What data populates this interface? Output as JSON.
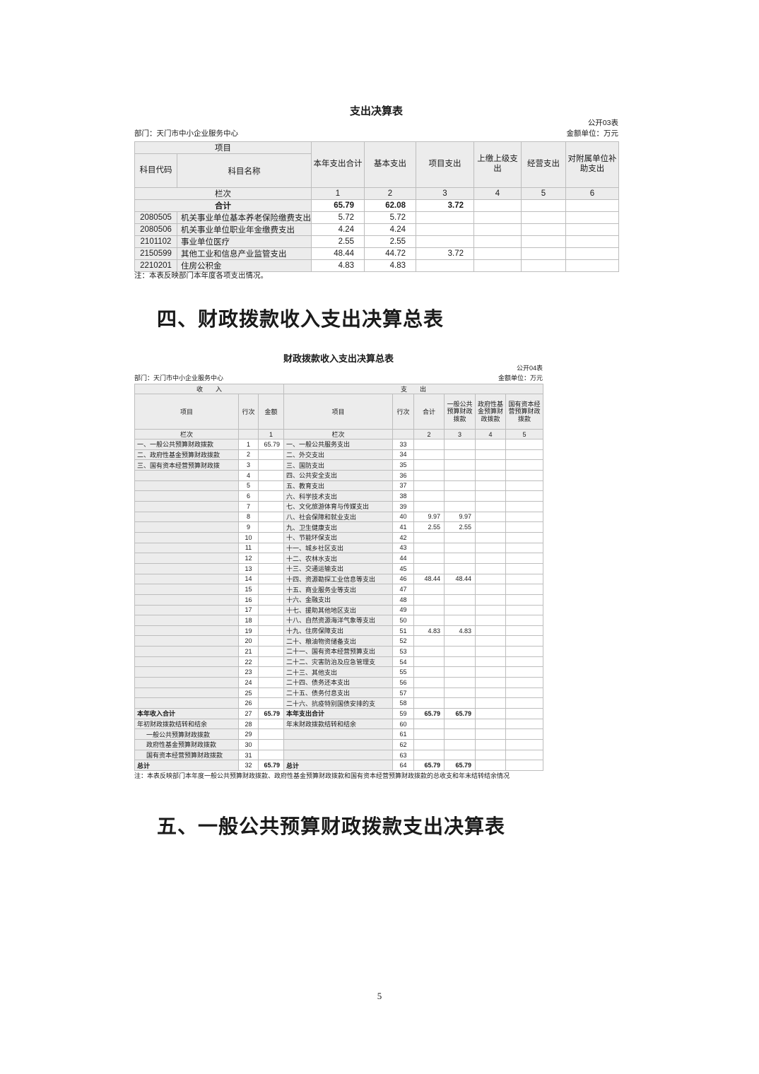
{
  "colors": {
    "header_bg": "#ececec",
    "border": "#bdbdbd",
    "page_bg": "#ffffff",
    "text": "#1a1a1a"
  },
  "page_number": "5",
  "section4_heading": "四、财政拨款收入支出决算总表",
  "section5_heading": "五、一般公共预算财政拨款支出决算表",
  "table1": {
    "title": "支出决算表",
    "form_no": "公开03表",
    "department": "部门：天门市中小企业服务中心",
    "unit": "金额单位：万元",
    "col_group": "项目",
    "col_code": "科目代码",
    "col_name": "科目名称",
    "cols": [
      "本年支出合计",
      "基本支出",
      "项目支出",
      "上缴上级支出",
      "经营支出",
      "对附属单位补助支出"
    ],
    "lanci_label": "栏次",
    "lanci": [
      "1",
      "2",
      "3",
      "4",
      "5",
      "6"
    ],
    "total_label": "合计",
    "total": [
      "65.79",
      "62.08",
      "3.72",
      "",
      "",
      ""
    ],
    "rows": [
      {
        "code": "2080505",
        "name": "机关事业单位基本养老保险缴费支出",
        "v": [
          "5.72",
          "5.72",
          "",
          "",
          "",
          ""
        ]
      },
      {
        "code": "2080506",
        "name": "机关事业单位职业年金缴费支出",
        "v": [
          "4.24",
          "4.24",
          "",
          "",
          "",
          ""
        ]
      },
      {
        "code": "2101102",
        "name": "事业单位医疗",
        "v": [
          "2.55",
          "2.55",
          "",
          "",
          "",
          ""
        ]
      },
      {
        "code": "2150599",
        "name": "其他工业和信息产业监管支出",
        "v": [
          "48.44",
          "44.72",
          "3.72",
          "",
          "",
          ""
        ]
      },
      {
        "code": "2210201",
        "name": "住房公积金",
        "v": [
          "4.83",
          "4.83",
          "",
          "",
          "",
          ""
        ]
      }
    ],
    "note": "注：本表反映部门本年度各项支出情况。"
  },
  "table2": {
    "title": "财政拨款收入支出决算总表",
    "form_no": "公开04表",
    "department": "部门：天门市中小企业服务中心",
    "unit": "金额单位：万元",
    "income_header": "收　　入",
    "expense_header": "支　　出",
    "col_item": "项目",
    "col_rownum": "行次",
    "col_amount": "金额",
    "col_total": "合计",
    "col_general": "一般公共预算财政拨款",
    "col_gov_fund": "政府性基金预算财政拨款",
    "col_state_capital": "国有资本经营预算财政拨款",
    "lanci_label": "栏次",
    "lanci_income": "1",
    "lanci_expense": [
      "2",
      "3",
      "4",
      "5"
    ],
    "left_rows": [
      {
        "label": "一、一般公共预算财政拨款",
        "num": "1",
        "amount": "65.79"
      },
      {
        "label": "二、政府性基金预算财政拨款",
        "num": "2",
        "amount": ""
      },
      {
        "label": "三、国有资本经营预算财政拨",
        "num": "3",
        "amount": ""
      },
      {
        "label": "",
        "num": "4",
        "amount": ""
      },
      {
        "label": "",
        "num": "5",
        "amount": ""
      },
      {
        "label": "",
        "num": "6",
        "amount": ""
      },
      {
        "label": "",
        "num": "7",
        "amount": ""
      },
      {
        "label": "",
        "num": "8",
        "amount": ""
      },
      {
        "label": "",
        "num": "9",
        "amount": ""
      },
      {
        "label": "",
        "num": "10",
        "amount": ""
      },
      {
        "label": "",
        "num": "11",
        "amount": ""
      },
      {
        "label": "",
        "num": "12",
        "amount": ""
      },
      {
        "label": "",
        "num": "13",
        "amount": ""
      },
      {
        "label": "",
        "num": "14",
        "amount": ""
      },
      {
        "label": "",
        "num": "15",
        "amount": ""
      },
      {
        "label": "",
        "num": "16",
        "amount": ""
      },
      {
        "label": "",
        "num": "17",
        "amount": ""
      },
      {
        "label": "",
        "num": "18",
        "amount": ""
      },
      {
        "label": "",
        "num": "19",
        "amount": ""
      },
      {
        "label": "",
        "num": "20",
        "amount": ""
      },
      {
        "label": "",
        "num": "21",
        "amount": ""
      },
      {
        "label": "",
        "num": "22",
        "amount": ""
      },
      {
        "label": "",
        "num": "23",
        "amount": ""
      },
      {
        "label": "",
        "num": "24",
        "amount": ""
      },
      {
        "label": "",
        "num": "25",
        "amount": ""
      },
      {
        "label": "",
        "num": "26",
        "amount": ""
      },
      {
        "label": "本年收入合计",
        "num": "27",
        "amount": "65.79",
        "bold": true,
        "center": true
      },
      {
        "label": "年初财政拨款结转和结余",
        "num": "28",
        "amount": ""
      },
      {
        "label": "一般公共预算财政拨款",
        "num": "29",
        "amount": "",
        "indent": true
      },
      {
        "label": "政府性基金预算财政拨款",
        "num": "30",
        "amount": "",
        "indent": true
      },
      {
        "label": "国有资本经营预算财政拨款",
        "num": "31",
        "amount": "",
        "indent": true
      },
      {
        "label": "总计",
        "num": "32",
        "amount": "65.79",
        "bold": true,
        "center": true
      }
    ],
    "right_rows": [
      {
        "label": "一、一般公共服务支出",
        "num": "33",
        "total": "",
        "general": "",
        "gov_fund": "",
        "state_capital": ""
      },
      {
        "label": "二、外交支出",
        "num": "34",
        "total": "",
        "general": "",
        "gov_fund": "",
        "state_capital": ""
      },
      {
        "label": "三、国防支出",
        "num": "35",
        "total": "",
        "general": "",
        "gov_fund": "",
        "state_capital": ""
      },
      {
        "label": "四、公共安全支出",
        "num": "36",
        "total": "",
        "general": "",
        "gov_fund": "",
        "state_capital": ""
      },
      {
        "label": "五、教育支出",
        "num": "37",
        "total": "",
        "general": "",
        "gov_fund": "",
        "state_capital": ""
      },
      {
        "label": "六、科学技术支出",
        "num": "38",
        "total": "",
        "general": "",
        "gov_fund": "",
        "state_capital": ""
      },
      {
        "label": "七、文化旅游体育与传媒支出",
        "num": "39",
        "total": "",
        "general": "",
        "gov_fund": "",
        "state_capital": ""
      },
      {
        "label": "八、社会保障和就业支出",
        "num": "40",
        "total": "9.97",
        "general": "9.97",
        "gov_fund": "",
        "state_capital": ""
      },
      {
        "label": "九、卫生健康支出",
        "num": "41",
        "total": "2.55",
        "general": "2.55",
        "gov_fund": "",
        "state_capital": ""
      },
      {
        "label": "十、节能环保支出",
        "num": "42",
        "total": "",
        "general": "",
        "gov_fund": "",
        "state_capital": ""
      },
      {
        "label": "十一、城乡社区支出",
        "num": "43",
        "total": "",
        "general": "",
        "gov_fund": "",
        "state_capital": ""
      },
      {
        "label": "十二、农林水支出",
        "num": "44",
        "total": "",
        "general": "",
        "gov_fund": "",
        "state_capital": ""
      },
      {
        "label": "十三、交通运输支出",
        "num": "45",
        "total": "",
        "general": "",
        "gov_fund": "",
        "state_capital": ""
      },
      {
        "label": "十四、资源勘探工业信息等支出",
        "num": "46",
        "total": "48.44",
        "general": "48.44",
        "gov_fund": "",
        "state_capital": ""
      },
      {
        "label": "十五、商业服务业等支出",
        "num": "47",
        "total": "",
        "general": "",
        "gov_fund": "",
        "state_capital": ""
      },
      {
        "label": "十六、金融支出",
        "num": "48",
        "total": "",
        "general": "",
        "gov_fund": "",
        "state_capital": ""
      },
      {
        "label": "十七、援助其他地区支出",
        "num": "49",
        "total": "",
        "general": "",
        "gov_fund": "",
        "state_capital": ""
      },
      {
        "label": "十八、自然资源海洋气象等支出",
        "num": "50",
        "total": "",
        "general": "",
        "gov_fund": "",
        "state_capital": ""
      },
      {
        "label": "十九、住房保障支出",
        "num": "51",
        "total": "4.83",
        "general": "4.83",
        "gov_fund": "",
        "state_capital": ""
      },
      {
        "label": "二十、粮油物资储备支出",
        "num": "52",
        "total": "",
        "general": "",
        "gov_fund": "",
        "state_capital": ""
      },
      {
        "label": "二十一、国有资本经营预算支出",
        "num": "53",
        "total": "",
        "general": "",
        "gov_fund": "",
        "state_capital": ""
      },
      {
        "label": "二十二、灾害防治及应急管理支",
        "num": "54",
        "total": "",
        "general": "",
        "gov_fund": "",
        "state_capital": ""
      },
      {
        "label": "二十三、其他支出",
        "num": "55",
        "total": "",
        "general": "",
        "gov_fund": "",
        "state_capital": ""
      },
      {
        "label": "二十四、债务还本支出",
        "num": "56",
        "total": "",
        "general": "",
        "gov_fund": "",
        "state_capital": ""
      },
      {
        "label": "二十五、债务付息支出",
        "num": "57",
        "total": "",
        "general": "",
        "gov_fund": "",
        "state_capital": ""
      },
      {
        "label": "二十六、抗疫特别国债安排的支",
        "num": "58",
        "total": "",
        "general": "",
        "gov_fund": "",
        "state_capital": ""
      },
      {
        "label": "本年支出合计",
        "num": "59",
        "total": "65.79",
        "general": "65.79",
        "gov_fund": "",
        "state_capital": "",
        "bold": true,
        "center": true
      },
      {
        "label": "年末财政拨款结转和结余",
        "num": "60",
        "total": "",
        "general": "",
        "gov_fund": "",
        "state_capital": ""
      },
      {
        "label": "",
        "num": "61",
        "total": "",
        "general": "",
        "gov_fund": "",
        "state_capital": ""
      },
      {
        "label": "",
        "num": "62",
        "total": "",
        "general": "",
        "gov_fund": "",
        "state_capital": ""
      },
      {
        "label": "",
        "num": "63",
        "total": "",
        "general": "",
        "gov_fund": "",
        "state_capital": ""
      },
      {
        "label": "总计",
        "num": "64",
        "total": "65.79",
        "general": "65.79",
        "gov_fund": "",
        "state_capital": "",
        "bold": true,
        "center": true
      }
    ],
    "note": "注：本表反映部门本年度一般公共预算财政拨款、政府性基金预算财政拨款和国有资本经营预算财政拨款的总收支和年末结转结余情况"
  }
}
